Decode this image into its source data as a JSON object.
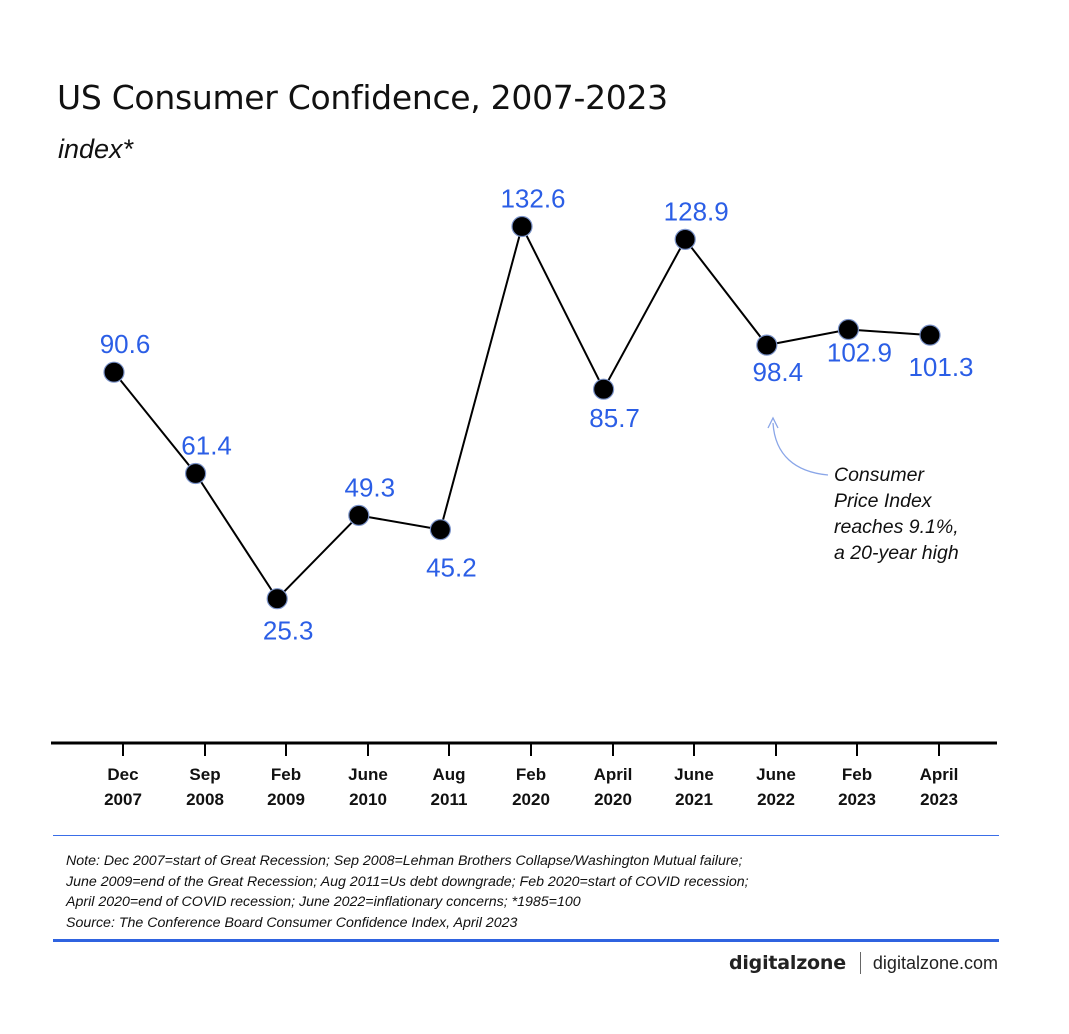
{
  "chart_data": {
    "type": "line",
    "title": "US Consumer Confidence, 2007-2023",
    "subtitle": "index*",
    "categories": [
      {
        "month": "Dec",
        "year": "2007"
      },
      {
        "month": "Sep",
        "year": "2008"
      },
      {
        "month": "Feb",
        "year": "2009"
      },
      {
        "month": "June",
        "year": "2010"
      },
      {
        "month": "Aug",
        "year": "2011"
      },
      {
        "month": "Feb",
        "year": "2020"
      },
      {
        "month": "April",
        "year": "2020"
      },
      {
        "month": "June",
        "year": "2021"
      },
      {
        "month": "June",
        "year": "2022"
      },
      {
        "month": "Feb",
        "year": "2023"
      },
      {
        "month": "April",
        "year": "2023"
      }
    ],
    "values": [
      90.6,
      61.4,
      25.3,
      49.3,
      45.2,
      132.6,
      85.7,
      128.9,
      98.4,
      102.9,
      101.3
    ],
    "value_labels": [
      "90.6",
      "61.4",
      "25.3",
      "49.3",
      "45.2",
      "132.6",
      "85.7",
      "128.9",
      "98.4",
      "102.9",
      "101.3"
    ],
    "ylim": [
      0,
      150
    ],
    "grid": false,
    "annotation": {
      "target_category_index": 8,
      "lines": [
        "Consumer",
        "Price Index",
        "reaches 9.1%,",
        "a 20-year high"
      ]
    },
    "colors": {
      "line": "#000000",
      "marker": "#000000",
      "value_label": "#2b5ee6",
      "annotation_arrow": "#8aa6e8",
      "axis": "#000000"
    }
  },
  "note": {
    "lines": [
      "Note: Dec 2007=start of Great Recession; Sep 2008=Lehman Brothers Collapse/Washington Mutual failure;",
      "June 2009=end of the Great Recession; Aug 2011=Us debt downgrade; Feb 2020=start of COVID recession;",
      "April 2020=end of COVID recession; June 2022=inflationary concerns; *1985=100",
      "Source: The Conference Board Consumer Confidence Index, April 2023"
    ]
  },
  "footer": {
    "logo": "digitalzone",
    "site": "digitalzone.com"
  },
  "colors": {
    "accent_rule": "#2f63e0"
  }
}
